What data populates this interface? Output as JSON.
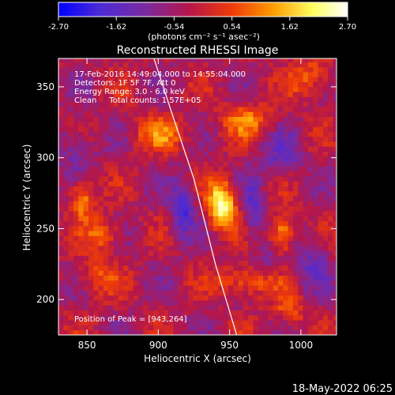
{
  "colorbar": {
    "tick_labels": [
      "-2.70",
      "-1.62",
      "-0.54",
      "0.54",
      "1.62",
      "2.70"
    ],
    "tick_values": [
      -2.7,
      -1.62,
      -0.54,
      0.54,
      1.62,
      2.7
    ],
    "range": [
      -2.7,
      2.7
    ],
    "units_label": "(photons cm⁻² s⁻¹ asec⁻²)"
  },
  "chart_data": {
    "type": "heatmap",
    "title": "Reconstructed RHESSI Image",
    "xlabel": "Heliocentric X (arcsec)",
    "ylabel": "Heliocentric Y (arcsec)",
    "xlim": [
      830,
      1025
    ],
    "ylim": [
      175,
      370
    ],
    "x_ticks": [
      850,
      900,
      950,
      1000
    ],
    "y_ticks": [
      200,
      250,
      300,
      350
    ],
    "x_tick_labels": [
      "850",
      "900",
      "950",
      "1000"
    ],
    "y_tick_labels": [
      "200",
      "250",
      "300",
      "350"
    ],
    "info_lines": [
      "17-Feb-2016 14:49:04.000 to 14:55:04.000",
      "Detectors: 1F 5F 7F, Att 0",
      "Energy Range: 3.0 - 6.0 keV",
      "Clean     Total counts: 1.57E+05"
    ],
    "peak_text": "Position of Peak = [943,264]",
    "peak": {
      "x": 943,
      "y": 264,
      "value": 2.7
    },
    "colormap": [
      "#0000ff",
      "#4b2ad8",
      "#7a2aa0",
      "#b4164a",
      "#ee3a08",
      "#ff9a00",
      "#ffff60",
      "#ffffff"
    ],
    "limb_curve": {
      "x": [
        897,
        910,
        925,
        940,
        955
      ],
      "y": [
        370,
        330,
        285,
        225,
        175
      ]
    },
    "sources": [
      {
        "x": 943,
        "y": 265,
        "sx": 7,
        "sy": 12,
        "amp": 2.7
      },
      {
        "x": 985,
        "y": 245,
        "sx": 6,
        "sy": 10,
        "amp": 1.9
      },
      {
        "x": 845,
        "y": 270,
        "sx": 6,
        "sy": 10,
        "amp": 1.7
      },
      {
        "x": 860,
        "y": 245,
        "sx": 8,
        "sy": 8,
        "amp": 1.3
      },
      {
        "x": 960,
        "y": 212,
        "sx": 14,
        "sy": 8,
        "amp": 1.4
      },
      {
        "x": 900,
        "y": 315,
        "sx": 14,
        "sy": 8,
        "amp": 1.2
      },
      {
        "x": 960,
        "y": 325,
        "sx": 12,
        "sy": 8,
        "amp": 1.3
      },
      {
        "x": 1005,
        "y": 355,
        "sx": 10,
        "sy": 10,
        "amp": 1.2
      },
      {
        "x": 855,
        "y": 215,
        "sx": 10,
        "sy": 10,
        "amp": 0.9
      },
      {
        "x": 990,
        "y": 190,
        "sx": 8,
        "sy": 8,
        "amp": 1.0
      },
      {
        "x": 915,
        "y": 262,
        "sx": 6,
        "sy": 14,
        "amp": -1.5
      },
      {
        "x": 965,
        "y": 262,
        "sx": 5,
        "sy": 14,
        "amp": -1.2
      },
      {
        "x": 985,
        "y": 300,
        "sx": 10,
        "sy": 10,
        "amp": -1.0
      },
      {
        "x": 1005,
        "y": 225,
        "sx": 8,
        "sy": 14,
        "amp": -0.9
      },
      {
        "x": 975,
        "y": 225,
        "sx": 8,
        "sy": 8,
        "amp": -0.8
      },
      {
        "x": 840,
        "y": 305,
        "sx": 10,
        "sy": 14,
        "amp": -0.8
      }
    ]
  },
  "timestamp": "18-May-2022 06:25"
}
